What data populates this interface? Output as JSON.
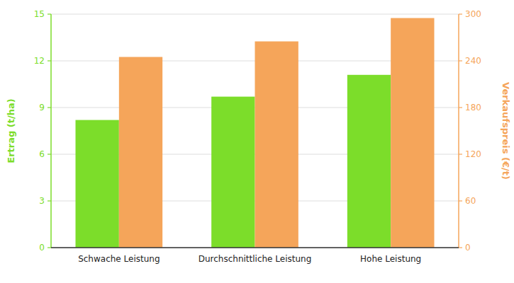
{
  "chart_data": {
    "type": "bar",
    "categories": [
      "Schwache Leistung",
      "Durchschnittliche Leistung",
      "Hohe Leistung"
    ],
    "series": [
      {
        "color": "#7cdd2a",
        "values": [
          8.2,
          9.7,
          11.1
        ]
      },
      {
        "color": "#f5a55a",
        "values": [
          245,
          265,
          295
        ],
        "axis": "y2"
      }
    ],
    "ylabel": "Ertrag (t/ha)",
    "y2label": "Verkaufspreis (€/t)",
    "ylim": [
      0,
      15
    ],
    "yticks": [
      0,
      3,
      6,
      9,
      12,
      15
    ],
    "y2lim": [
      0,
      300
    ],
    "y2ticks": [
      0,
      60,
      120,
      180,
      240,
      300
    ],
    "grid": true
  }
}
